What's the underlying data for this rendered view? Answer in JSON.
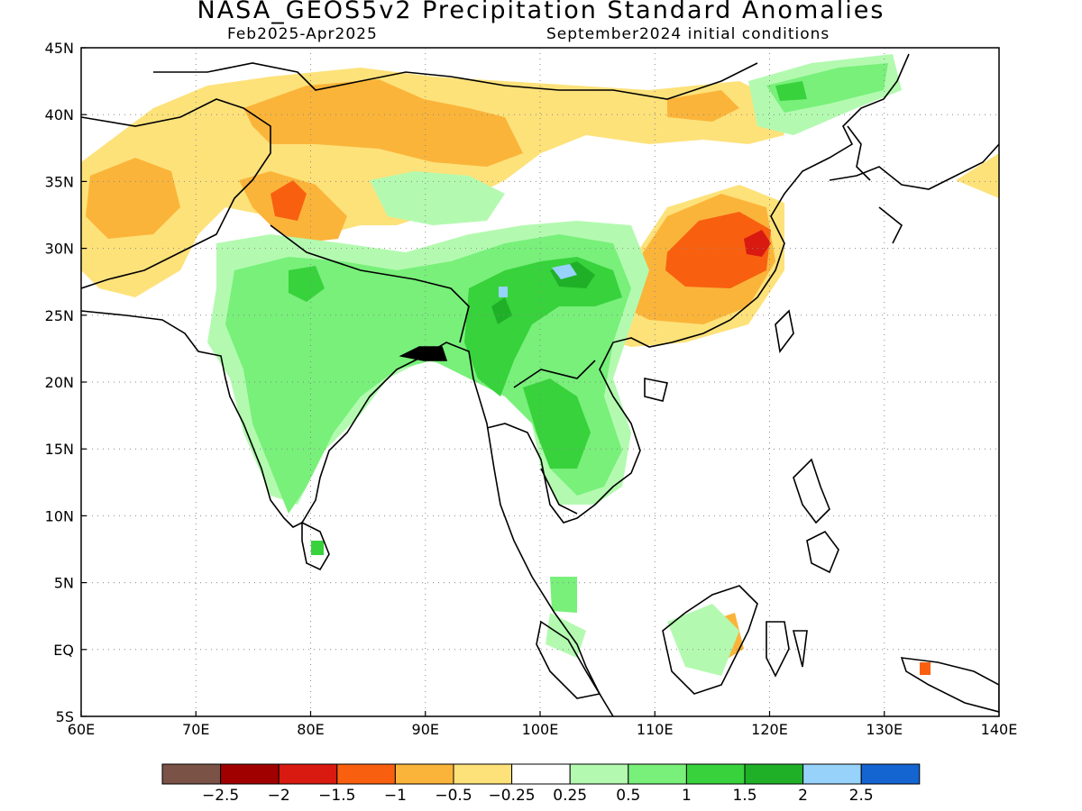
{
  "title": "NASA_GEOS5v2 Precipitation Standard Anomalies",
  "subtitle_left": "Feb2025-Apr2025",
  "subtitle_right": "September2024 initial conditions",
  "map": {
    "lon_ticks": [
      "60E",
      "70E",
      "80E",
      "90E",
      "100E",
      "110E",
      "120E",
      "130E",
      "140E"
    ],
    "lat_ticks": [
      "45N",
      "40N",
      "35N",
      "30N",
      "25N",
      "20N",
      "15N",
      "10N",
      "5N",
      "EQ",
      "5S"
    ],
    "grid": "dotted"
  },
  "colorbar": {
    "colors": [
      "#7a5246",
      "#a00000",
      "#d81a10",
      "#f86010",
      "#fbb43a",
      "#fde27a",
      "#ffffff",
      "#b3fab0",
      "#78f07a",
      "#38d23c",
      "#20b028",
      "#96d2fa",
      "#1464d2"
    ],
    "labels": [
      "-2.5",
      "-2",
      "-1.5",
      "-1",
      "-0.5",
      "-0.25",
      "0.25",
      "0.5",
      "1",
      "1.5",
      "2",
      "2.5"
    ]
  }
}
